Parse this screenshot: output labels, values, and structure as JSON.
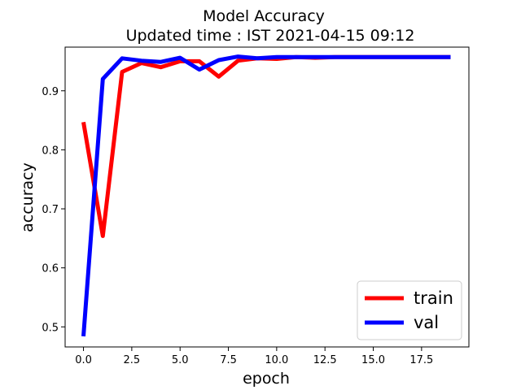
{
  "chart_data": {
    "type": "line",
    "title": "Model Accuracy",
    "subtitle": "Updated time : IST 2021-04-15 09:12",
    "xlabel": "epoch",
    "ylabel": "accuracy",
    "xlim": [
      -0.95,
      19.95
    ],
    "ylim": [
      0.466,
      0.974
    ],
    "xticks": [
      0.0,
      2.5,
      5.0,
      7.5,
      10.0,
      12.5,
      15.0,
      17.5
    ],
    "xtick_labels": [
      "0.0",
      "2.5",
      "5.0",
      "7.5",
      "10.0",
      "12.5",
      "15.0",
      "17.5"
    ],
    "yticks": [
      0.5,
      0.6,
      0.7,
      0.8,
      0.9
    ],
    "ytick_labels": [
      "0.5",
      "0.6",
      "0.7",
      "0.8",
      "0.9"
    ],
    "grid": false,
    "legend_position": "lower-right",
    "x": [
      0,
      1,
      2,
      3,
      4,
      5,
      6,
      7,
      8,
      9,
      10,
      11,
      12,
      13,
      14,
      15,
      16,
      17,
      18,
      19
    ],
    "series": [
      {
        "name": "train",
        "color": "#ff0000",
        "values": [
          0.847,
          0.654,
          0.932,
          0.947,
          0.94,
          0.95,
          0.95,
          0.924,
          0.951,
          0.955,
          0.954,
          0.957,
          0.956,
          0.957,
          0.957,
          0.957,
          0.957,
          0.957,
          0.957,
          0.957
        ]
      },
      {
        "name": "val",
        "color": "#0000ff",
        "values": [
          0.484,
          0.92,
          0.955,
          0.951,
          0.949,
          0.956,
          0.936,
          0.952,
          0.958,
          0.955,
          0.957,
          0.957,
          0.957,
          0.957,
          0.957,
          0.957,
          0.957,
          0.957,
          0.957,
          0.957
        ]
      }
    ]
  }
}
